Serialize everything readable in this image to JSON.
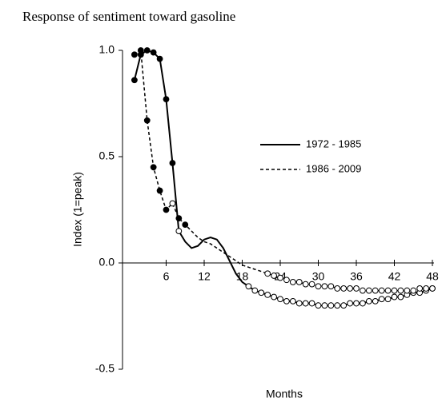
{
  "chart_data": {
    "type": "line",
    "title": "Response of sentiment toward gasoline",
    "x_label": "Months",
    "y_label": "Index (1=peak)",
    "x": [
      1,
      2,
      3,
      4,
      5,
      6,
      7,
      8,
      9,
      10,
      11,
      12,
      13,
      14,
      15,
      16,
      17,
      18,
      19,
      20,
      21,
      22,
      23,
      24,
      25,
      26,
      27,
      28,
      29,
      30,
      31,
      32,
      33,
      34,
      35,
      36,
      37,
      38,
      39,
      40,
      41,
      42,
      43,
      44,
      45,
      46,
      47,
      48
    ],
    "series": [
      {
        "name": "1972 - 1985",
        "color": "#000000",
        "line_style": "solid",
        "values": [
          0.86,
          0.98,
          1.0,
          0.99,
          0.96,
          0.77,
          0.47,
          0.15,
          0.1,
          0.07,
          0.08,
          0.11,
          0.12,
          0.11,
          0.07,
          0.01,
          -0.05,
          -0.09,
          -0.11,
          -0.13,
          -0.14,
          -0.15,
          -0.16,
          -0.17,
          -0.18,
          -0.18,
          -0.19,
          -0.19,
          -0.19,
          -0.2,
          -0.2,
          -0.2,
          -0.2,
          -0.2,
          -0.19,
          -0.19,
          -0.19,
          -0.18,
          -0.18,
          -0.17,
          -0.17,
          -0.16,
          -0.16,
          -0.15,
          -0.14,
          -0.14,
          -0.13,
          -0.12
        ],
        "markers": [
          "filled",
          "filled",
          "filled",
          "filled",
          "filled",
          "filled",
          "filled",
          "open",
          null,
          null,
          null,
          null,
          null,
          null,
          null,
          null,
          null,
          null,
          "open",
          "open",
          "open",
          "open",
          "open",
          "open",
          "open",
          "open",
          "open",
          "open",
          "open",
          "open",
          "open",
          "open",
          "open",
          "open",
          "open",
          "open",
          "open",
          "open",
          "open",
          "open",
          "open",
          "open",
          "open",
          "open",
          "open",
          "open",
          "open",
          "open"
        ]
      },
      {
        "name": "1986 - 2009",
        "color": "#000000",
        "line_style": "dashed",
        "values": [
          0.98,
          1.0,
          0.67,
          0.45,
          0.34,
          0.25,
          0.28,
          0.21,
          0.18,
          0.15,
          0.12,
          0.1,
          0.09,
          0.07,
          0.05,
          0.03,
          0.01,
          -0.01,
          -0.02,
          -0.03,
          -0.04,
          -0.05,
          -0.06,
          -0.07,
          -0.08,
          -0.09,
          -0.09,
          -0.1,
          -0.1,
          -0.11,
          -0.11,
          -0.11,
          -0.12,
          -0.12,
          -0.12,
          -0.12,
          -0.13,
          -0.13,
          -0.13,
          -0.13,
          -0.13,
          -0.13,
          -0.13,
          -0.13,
          -0.13,
          -0.12,
          -0.12,
          -0.12
        ],
        "markers": [
          "filled",
          "filled",
          "filled",
          "filled",
          "filled",
          "filled",
          "open",
          "filled",
          "filled",
          null,
          null,
          null,
          null,
          null,
          null,
          null,
          null,
          null,
          null,
          null,
          null,
          "open",
          "open",
          "open",
          "open",
          "open",
          "open",
          "open",
          "open",
          "open",
          "open",
          "open",
          "open",
          "open",
          "open",
          "open",
          "open",
          "open",
          "open",
          "open",
          "open",
          "open",
          "open",
          "open",
          "open",
          "open",
          "open",
          "open"
        ]
      }
    ],
    "xlim": [
      0,
      48
    ],
    "xticks": [
      6,
      12,
      18,
      24,
      30,
      36,
      42,
      48
    ],
    "ylim": [
      -0.5,
      1.0
    ],
    "yticks": [
      {
        "value": -0.5,
        "label": "-0.5"
      },
      {
        "value": 0,
        "label": "0.0"
      },
      {
        "value": 0.5,
        "label": "0.5"
      },
      {
        "value": 1.0,
        "label": "1.0"
      }
    ],
    "legend": "right"
  }
}
